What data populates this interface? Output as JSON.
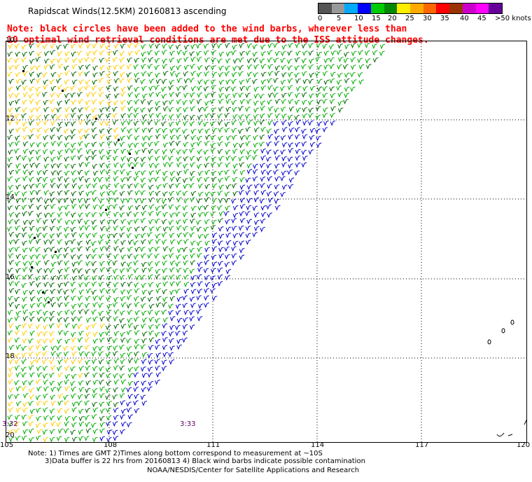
{
  "header": {
    "title": "Rapidscat Winds(12.5KM) 20160813 ascending",
    "note_line1": "Note: black circles have been added to the wind barbs, wherever less than",
    "note_line2": "10    optimal wind retrieval conditions are met due to the ISS attitude changes."
  },
  "colorbar": {
    "colors": [
      "#555555",
      "#999999",
      "#00aaff",
      "#0000ff",
      "#00cc00",
      "#008800",
      "#ffee00",
      "#ffaa00",
      "#ff6600",
      "#ff0000",
      "#993300",
      "#cc00cc",
      "#ff00ff",
      "#660099"
    ],
    "labels": [
      "0",
      "5",
      "10",
      "15",
      "20",
      "25",
      "30",
      "35",
      "40",
      "45",
      ">50 knots"
    ]
  },
  "axes": {
    "lat_labels": [
      "10",
      "12",
      "14",
      "16",
      "18",
      "20"
    ],
    "lon_labels": [
      "105",
      "108",
      "111",
      "114",
      "117",
      "120"
    ]
  },
  "times": [
    "3:32",
    "3:33"
  ],
  "footer": {
    "line1": "Note: 1) Times are GMT 2)Times along bottom correspond to measurement at ~10S",
    "line2": "3)Data buffer is 22 hrs from 20160813 4) Black wind barbs indicate possible contamination",
    "line3": "NOAA/NESDIS/Center for Satellite Applications and Research"
  }
}
